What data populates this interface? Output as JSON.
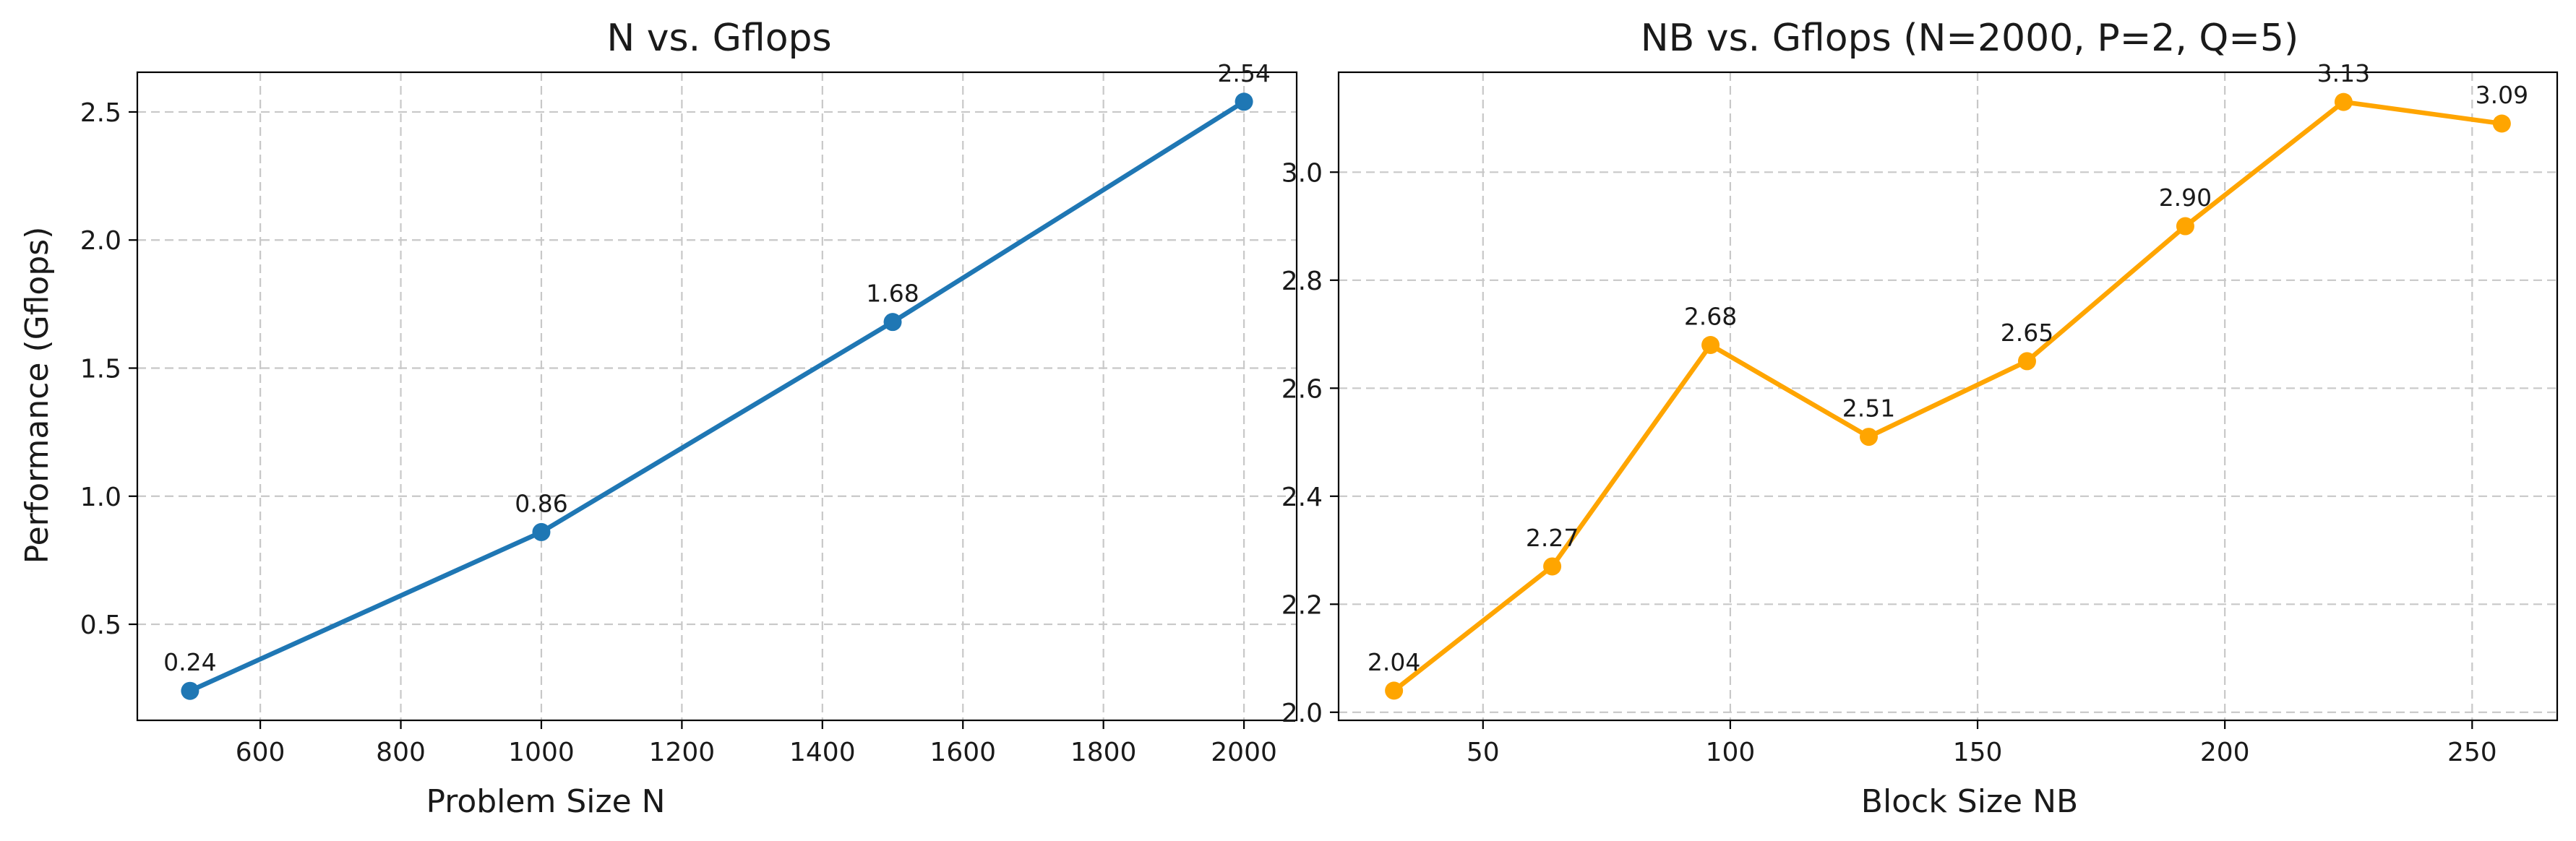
{
  "chart_data": [
    {
      "type": "line",
      "title": "N vs. Gflops",
      "xlabel": "Problem Size N",
      "ylabel": "Performance (Gflops)",
      "x": [
        500,
        1000,
        1500,
        2000
      ],
      "series": [
        {
          "values": [
            0.24,
            0.86,
            1.68,
            2.54
          ],
          "data_labels": [
            "0.24",
            "0.86",
            "1.68",
            "2.54"
          ],
          "color": "#1f77b4"
        }
      ],
      "xlim": [
        425,
        2075
      ],
      "ylim": [
        0.125,
        2.655
      ],
      "xticks": [
        600,
        800,
        1000,
        1200,
        1400,
        1600,
        1800,
        2000
      ],
      "xtick_labels": [
        "600",
        "800",
        "1000",
        "1200",
        "1400",
        "1600",
        "1800",
        "2000"
      ],
      "yticks": [
        0.5,
        1.0,
        1.5,
        2.0,
        2.5
      ],
      "ytick_labels": [
        "0.5",
        "1.0",
        "1.5",
        "2.0",
        "2.5"
      ],
      "grid": true,
      "marker": "circle"
    },
    {
      "type": "line",
      "title": "NB vs. Gflops (N=2000, P=2, Q=5)",
      "xlabel": "Block Size NB",
      "ylabel": "",
      "x": [
        32,
        64,
        96,
        128,
        160,
        192,
        224,
        256
      ],
      "series": [
        {
          "values": [
            2.04,
            2.27,
            2.68,
            2.51,
            2.65,
            2.9,
            3.13,
            3.09
          ],
          "data_labels": [
            "2.04",
            "2.27",
            "2.68",
            "2.51",
            "2.65",
            "2.90",
            "3.13",
            "3.09"
          ],
          "color": "#ffa500"
        }
      ],
      "xlim": [
        20.8,
        267.2
      ],
      "ylim": [
        1.985,
        3.185
      ],
      "xticks": [
        50,
        100,
        150,
        200,
        250
      ],
      "xtick_labels": [
        "50",
        "100",
        "150",
        "200",
        "250"
      ],
      "yticks": [
        2.0,
        2.2,
        2.4,
        2.6,
        2.8,
        3.0
      ],
      "ytick_labels": [
        "2.0",
        "2.2",
        "2.4",
        "2.6",
        "2.8",
        "3.0"
      ],
      "grid": true,
      "marker": "circle"
    }
  ]
}
